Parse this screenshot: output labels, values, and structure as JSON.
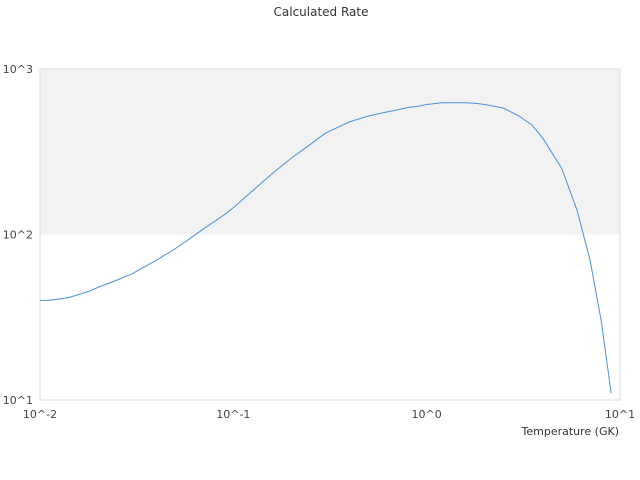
{
  "chart_data": {
    "type": "line",
    "title": "Calculated Rate",
    "xlabel": "Temperature (GK)",
    "ylabel": "",
    "x_scale": "log",
    "y_scale": "log",
    "xlim": [
      0.01,
      10
    ],
    "ylim": [
      10,
      1000
    ],
    "x_ticks": [
      {
        "value": 0.01,
        "label": "10^-2"
      },
      {
        "value": 0.1,
        "label": "10^-1"
      },
      {
        "value": 1,
        "label": "10^0"
      },
      {
        "value": 10,
        "label": "10^1"
      }
    ],
    "y_ticks": [
      {
        "value": 10,
        "label": "10^1"
      },
      {
        "value": 100,
        "label": "10^2"
      },
      {
        "value": 1000,
        "label": "10^3"
      }
    ],
    "band_colors": [
      "#f2f2f2",
      "#ffffff"
    ],
    "grid": false,
    "series": [
      {
        "color": "#4a90d9",
        "x": [
          0.01,
          0.011,
          0.012,
          0.014,
          0.016,
          0.018,
          0.02,
          0.025,
          0.03,
          0.04,
          0.05,
          0.06,
          0.07,
          0.08,
          0.09,
          0.1,
          0.12,
          0.14,
          0.16,
          0.2,
          0.25,
          0.3,
          0.4,
          0.5,
          0.6,
          0.7,
          0.8,
          0.9,
          1.0,
          1.2,
          1.4,
          1.6,
          1.8,
          2.0,
          2.5,
          3.0,
          3.5,
          4.0,
          5.0,
          6.0,
          7.0,
          8.0,
          9.0
        ],
        "y": [
          40,
          40,
          40.5,
          41.5,
          43.5,
          45.5,
          48,
          53,
          58,
          70,
          82,
          95,
          108,
          120,
          132,
          145,
          175,
          205,
          235,
          290,
          350,
          410,
          480,
          520,
          545,
          565,
          585,
          595,
          610,
          625,
          625,
          625,
          620,
          610,
          580,
          520,
          460,
          380,
          250,
          140,
          70,
          30,
          11
        ]
      }
    ]
  }
}
